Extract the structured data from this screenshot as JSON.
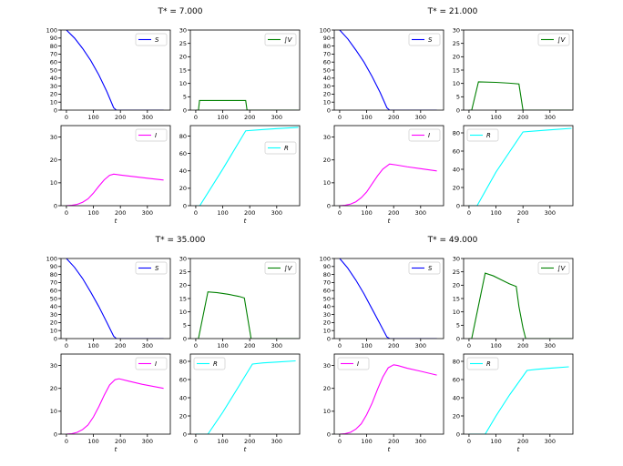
{
  "chart_data": [
    {
      "title": "T* = 7.000",
      "panels": {
        "S": {
          "type": "line",
          "legend": "S",
          "legend_loc": "upper-right",
          "color": "#0000ff",
          "x": [
            0,
            30,
            60,
            90,
            120,
            150,
            175,
            185,
            250,
            300,
            360
          ],
          "y": [
            100,
            90,
            77,
            62,
            44,
            23,
            3,
            0,
            0,
            0,
            0
          ],
          "xlim": [
            -20,
            385
          ],
          "ylim": [
            0,
            100
          ],
          "xticks": [
            "0",
            "100",
            "200",
            "300"
          ],
          "yticks": [
            "0",
            "10",
            "20",
            "30",
            "40",
            "50",
            "60",
            "70",
            "80",
            "90",
            "100"
          ]
        },
        "V": {
          "type": "line",
          "legend": "∫V",
          "legend_loc": "upper-right",
          "color": "#008000",
          "x": [
            0,
            10,
            14,
            50,
            100,
            150,
            185,
            190,
            250,
            300,
            380
          ],
          "y": [
            0,
            0,
            3.6,
            3.6,
            3.6,
            3.6,
            3.6,
            0,
            0,
            0,
            0
          ],
          "xlim": [
            -20,
            385
          ],
          "ylim": [
            0,
            30
          ],
          "xticks": [
            "0",
            "100",
            "200",
            "300"
          ],
          "yticks": [
            "0",
            "5",
            "10",
            "15",
            "20",
            "25",
            "30"
          ]
        },
        "I": {
          "type": "line",
          "legend": "I",
          "legend_loc": "upper-right",
          "color": "#ff00ff",
          "x": [
            0,
            20,
            40,
            60,
            80,
            100,
            120,
            140,
            160,
            175,
            200,
            250,
            300,
            360
          ],
          "y": [
            0,
            0.2,
            0.6,
            1.5,
            3,
            5.5,
            8.5,
            11.3,
            13.3,
            13.8,
            13.4,
            12.7,
            12.0,
            11.2
          ],
          "xlim": [
            -20,
            385
          ],
          "ylim": [
            0,
            35
          ],
          "xlabel": "t",
          "xticks": [
            "0",
            "100",
            "200",
            "300"
          ],
          "yticks": [
            "0",
            "10",
            "20",
            "30"
          ]
        },
        "R": {
          "type": "line",
          "legend": "R",
          "legend_loc": "right",
          "color": "#00ffff",
          "x": [
            0,
            15,
            100,
            185,
            250,
            300,
            380
          ],
          "y": [
            0,
            0,
            42,
            86,
            87.5,
            88.5,
            90
          ],
          "xlim": [
            -20,
            385
          ],
          "ylim": [
            0,
            92
          ],
          "xlabel": "t",
          "xticks": [
            "0",
            "100",
            "200",
            "300"
          ],
          "yticks": [
            "0",
            "20",
            "40",
            "60",
            "80"
          ]
        }
      }
    },
    {
      "title": "T* = 21.000",
      "panels": {
        "S": {
          "type": "line",
          "legend": "S",
          "legend_loc": "upper-right",
          "color": "#0000ff",
          "x": [
            0,
            30,
            60,
            90,
            120,
            150,
            175,
            185,
            250,
            300,
            360
          ],
          "y": [
            100,
            89,
            75,
            60,
            42,
            22,
            3,
            0,
            0,
            0,
            0
          ],
          "xlim": [
            -20,
            385
          ],
          "ylim": [
            0,
            100
          ],
          "xticks": [
            "0",
            "100",
            "200",
            "300"
          ],
          "yticks": [
            "0",
            "10",
            "20",
            "30",
            "40",
            "50",
            "60",
            "70",
            "80",
            "90",
            "100"
          ]
        },
        "V": {
          "type": "line",
          "legend": "∫V",
          "legend_loc": "upper-right",
          "color": "#008000",
          "x": [
            0,
            10,
            35,
            100,
            150,
            185,
            200,
            250,
            300,
            380
          ],
          "y": [
            0,
            0,
            10.6,
            10.4,
            10.1,
            9.8,
            0,
            0,
            0,
            0
          ],
          "xlim": [
            -20,
            385
          ],
          "ylim": [
            0,
            30
          ],
          "xticks": [
            "0",
            "100",
            "200",
            "300"
          ],
          "yticks": [
            "0",
            "5",
            "10",
            "15",
            "20",
            "25",
            "30"
          ]
        },
        "I": {
          "type": "line",
          "legend": "I",
          "legend_loc": "upper-right",
          "color": "#ff00ff",
          "x": [
            0,
            20,
            40,
            60,
            80,
            100,
            120,
            140,
            160,
            185,
            210,
            250,
            300,
            360
          ],
          "y": [
            0,
            0.2,
            0.7,
            1.7,
            3.5,
            6,
            9.5,
            13,
            16,
            18.2,
            17.8,
            17,
            16.2,
            15.2
          ],
          "xlim": [
            -20,
            385
          ],
          "ylim": [
            0,
            35
          ],
          "xlabel": "t",
          "xticks": [
            "0",
            "100",
            "200",
            "300"
          ],
          "yticks": [
            "0",
            "10",
            "20",
            "30"
          ]
        },
        "R": {
          "type": "line",
          "legend": "R",
          "legend_loc": "upper-left",
          "color": "#00ffff",
          "x": [
            0,
            30,
            100,
            200,
            250,
            300,
            380
          ],
          "y": [
            0,
            0,
            37,
            81,
            82.2,
            83.3,
            85
          ],
          "xlim": [
            -20,
            385
          ],
          "ylim": [
            0,
            88
          ],
          "xlabel": "t",
          "xticks": [
            "0",
            "100",
            "200",
            "300"
          ],
          "yticks": [
            "0",
            "20",
            "40",
            "60",
            "80"
          ]
        }
      }
    },
    {
      "title": "T* = 35.000",
      "panels": {
        "S": {
          "type": "line",
          "legend": "S",
          "legend_loc": "upper-right",
          "color": "#0000ff",
          "x": [
            0,
            30,
            60,
            90,
            120,
            150,
            175,
            185,
            250,
            300,
            360
          ],
          "y": [
            100,
            89,
            75,
            58,
            40,
            20,
            3,
            0,
            0,
            0,
            0
          ],
          "xlim": [
            -20,
            385
          ],
          "ylim": [
            0,
            100
          ],
          "xticks": [
            "0",
            "100",
            "200",
            "300"
          ],
          "yticks": [
            "0",
            "10",
            "20",
            "30",
            "40",
            "50",
            "60",
            "70",
            "80",
            "90",
            "100"
          ]
        },
        "V": {
          "type": "line",
          "legend": "∫V",
          "legend_loc": "upper-right",
          "color": "#008000",
          "x": [
            0,
            10,
            45,
            80,
            120,
            160,
            180,
            205,
            250,
            300,
            380
          ],
          "y": [
            0,
            0,
            17.5,
            17.2,
            16.6,
            15.8,
            15.2,
            0,
            0,
            0,
            0
          ],
          "xlim": [
            -20,
            385
          ],
          "ylim": [
            0,
            30
          ],
          "xticks": [
            "0",
            "100",
            "200",
            "300"
          ],
          "yticks": [
            "0",
            "5",
            "10",
            "15",
            "20",
            "25",
            "30"
          ]
        },
        "I": {
          "type": "line",
          "legend": "I",
          "legend_loc": "upper-right",
          "color": "#ff00ff",
          "x": [
            0,
            20,
            40,
            60,
            80,
            100,
            120,
            140,
            160,
            180,
            195,
            230,
            280,
            360
          ],
          "y": [
            0,
            0.2,
            0.8,
            2,
            4,
            7.5,
            12,
            17,
            21.5,
            23.8,
            24.2,
            23.2,
            21.8,
            20
          ],
          "xlim": [
            -20,
            385
          ],
          "ylim": [
            0,
            35
          ],
          "xlabel": "t",
          "xticks": [
            "0",
            "100",
            "200",
            "300"
          ],
          "yticks": [
            "0",
            "10",
            "20",
            "30"
          ]
        },
        "R": {
          "type": "line",
          "legend": "R",
          "legend_loc": "upper-left",
          "color": "#00ffff",
          "x": [
            0,
            45,
            100,
            150,
            210,
            250,
            300,
            370
          ],
          "y": [
            0,
            0,
            24,
            48,
            77,
            78.3,
            79.2,
            80.5
          ],
          "xlim": [
            -20,
            385
          ],
          "ylim": [
            0,
            88
          ],
          "xlabel": "t",
          "xticks": [
            "0",
            "100",
            "200",
            "300"
          ],
          "yticks": [
            "0",
            "20",
            "40",
            "60",
            "80"
          ]
        }
      }
    },
    {
      "title": "T* = 49.000",
      "panels": {
        "S": {
          "type": "line",
          "legend": "S",
          "legend_loc": "upper-right",
          "color": "#0000ff",
          "x": [
            0,
            30,
            60,
            90,
            120,
            150,
            175,
            185,
            250,
            300,
            360
          ],
          "y": [
            100,
            88,
            73,
            56,
            37,
            18,
            2,
            0,
            0,
            0,
            0
          ],
          "xlim": [
            -20,
            385
          ],
          "ylim": [
            0,
            100
          ],
          "xticks": [
            "0",
            "100",
            "200",
            "300"
          ],
          "yticks": [
            "0",
            "10",
            "20",
            "30",
            "40",
            "50",
            "60",
            "70",
            "80",
            "90",
            "100"
          ]
        },
        "V": {
          "type": "line",
          "legend": "∫V",
          "legend_loc": "upper-right",
          "color": "#008000",
          "x": [
            0,
            10,
            60,
            90,
            120,
            150,
            175,
            185,
            200,
            210,
            250,
            300,
            380
          ],
          "y": [
            0,
            0,
            24.5,
            23.5,
            22,
            20.5,
            19.5,
            12,
            4,
            0,
            0,
            0,
            0
          ],
          "xlim": [
            -20,
            385
          ],
          "ylim": [
            0,
            30
          ],
          "xticks": [
            "0",
            "100",
            "200",
            "300"
          ],
          "yticks": [
            "0",
            "5",
            "10",
            "15",
            "20",
            "25",
            "30"
          ]
        },
        "I": {
          "type": "line",
          "legend": "I",
          "legend_loc": "upper-left",
          "color": "#ff00ff",
          "x": [
            0,
            20,
            40,
            60,
            80,
            100,
            120,
            140,
            160,
            180,
            200,
            215,
            250,
            300,
            360
          ],
          "y": [
            0,
            0.2,
            0.8,
            2.2,
            4.5,
            8.5,
            13.5,
            19.5,
            25,
            29,
            30.3,
            30,
            28.8,
            27.5,
            25.8
          ],
          "xlim": [
            -20,
            385
          ],
          "ylim": [
            0,
            35
          ],
          "xlabel": "t",
          "xticks": [
            "0",
            "100",
            "200",
            "300"
          ],
          "yticks": [
            "0",
            "10",
            "20",
            "30"
          ]
        },
        "R": {
          "type": "line",
          "legend": "R",
          "legend_loc": "upper-left",
          "color": "#00ffff",
          "x": [
            0,
            60,
            100,
            150,
            215,
            250,
            300,
            370
          ],
          "y": [
            0,
            0,
            20,
            43,
            70,
            71.2,
            72.4,
            74
          ],
          "xlim": [
            -20,
            385
          ],
          "ylim": [
            0,
            88
          ],
          "xlabel": "t",
          "xticks": [
            "0",
            "100",
            "200",
            "300"
          ],
          "yticks": [
            "0",
            "20",
            "40",
            "60",
            "80"
          ]
        }
      }
    }
  ]
}
